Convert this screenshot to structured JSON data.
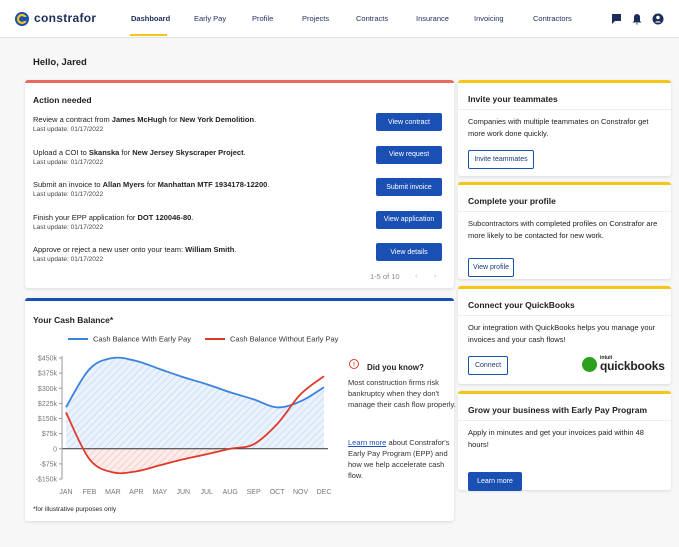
{
  "nav": {
    "logo": "constrafor",
    "items": [
      "Dashboard",
      "Early Pay",
      "Profile",
      "Projects",
      "Contracts",
      "Insurance",
      "Invoicing",
      "Contractors"
    ]
  },
  "greeting": "Hello, Jared",
  "action_needed": {
    "title": "Action needed",
    "items": [
      {
        "text": [
          "Review a contract from ",
          "James McHugh",
          " for ",
          "New York Demolition",
          "."
        ],
        "update": "Last update: 01/17/2022",
        "button": "View contract"
      },
      {
        "text": [
          "Upload a COI to ",
          "Skanska",
          " for ",
          "New Jersey Skyscraper Project",
          "."
        ],
        "update": "Last update: 01/17/2022",
        "button": "View request"
      },
      {
        "text": [
          "Submit an invoice to ",
          "Allan Myers",
          " for ",
          "Manhattan MTF 1934178-12200",
          "."
        ],
        "update": "Last update: 01/17/2022",
        "button": "Submit invoice"
      },
      {
        "text": [
          "Finish your EPP application for ",
          "DOT 120046-80",
          "."
        ],
        "update": "Last update: 01/17/2022",
        "button": "View application"
      },
      {
        "text": [
          "Approve or reject a new user onto your team: ",
          "William Smith",
          "."
        ],
        "update": "Last update: 01/17/2022",
        "button": "View details"
      }
    ],
    "pagination": "1-5 of 10"
  },
  "cash_balance": {
    "title": "Your Cash Balance*",
    "did_you_know": {
      "title": "Did you know?",
      "text": "Most construction firms risk bankruptcy when they don't manage their cash flow properly.",
      "link": "Learn more",
      "text2": " about Constrafor's Early Pay Program (EPP) and how we help accelerate cash flow."
    },
    "footnote": "*for illustrative purposes only"
  },
  "chart_data": {
    "type": "line",
    "categories": [
      "JAN",
      "FEB",
      "MAR",
      "APR",
      "MAY",
      "JUN",
      "JUL",
      "AUG",
      "SEP",
      "OCT",
      "NOV",
      "DEC"
    ],
    "series": [
      {
        "name": "Cash Balance With Early Pay",
        "color": "#3b82e0",
        "values": [
          206000,
          395000,
          450000,
          435000,
          395000,
          355000,
          320000,
          280000,
          245000,
          205000,
          235000,
          305000
        ]
      },
      {
        "name": "Cash Balance Without Early Pay",
        "color": "#e0392b",
        "values": [
          180000,
          -52000,
          -117000,
          -112000,
          -82000,
          -52000,
          -27000,
          0,
          22000,
          122000,
          270000,
          360000
        ]
      }
    ],
    "ylim": [
      -150000,
      450000
    ],
    "yticks": [
      {
        "value": 450000,
        "label": "$450k"
      },
      {
        "value": 375000,
        "label": "$375k"
      },
      {
        "value": 300000,
        "label": "$300k"
      },
      {
        "value": 225000,
        "label": "$225k"
      },
      {
        "value": 150000,
        "label": "$150k"
      },
      {
        "value": 75000,
        "label": "$75k"
      },
      0,
      {
        "value": -75000,
        "label": "-$75k"
      },
      {
        "value": -150000,
        "label": "-$150k"
      }
    ]
  },
  "side_cards": [
    {
      "title": "Invite your teammates",
      "text": "Companies with multiple teammates on Constrafor get more work done quickly.",
      "button": "Invite teammates"
    },
    {
      "title": "Complete your profile",
      "text": "Subcontractors with completed profiles on Constrafor are more likely to be contacted for new work.",
      "button": "View profile"
    },
    {
      "title": "Connect your QuickBooks",
      "text": "Our integration with QuickBooks helps you manage your invoices and your cash flows!",
      "button": "Connect",
      "logo_small": "intuit",
      "logo": "quickbooks"
    },
    {
      "title": "Grow your business with Early Pay Program",
      "text": "Apply in minutes and get your invoices paid within 48 hours!",
      "button": "Learn more"
    }
  ]
}
